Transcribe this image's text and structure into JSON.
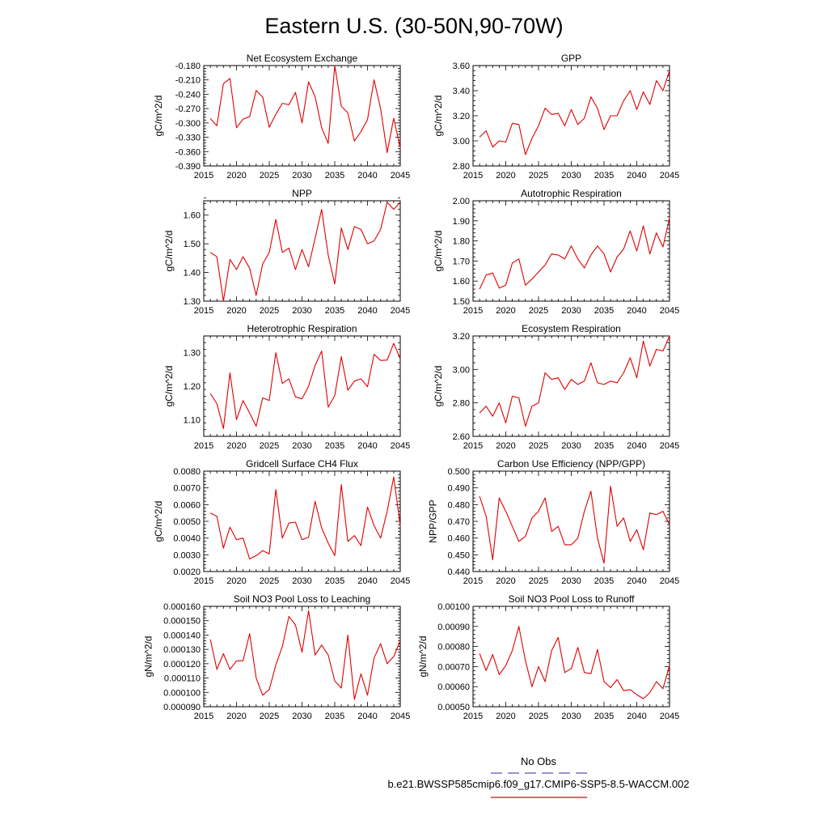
{
  "title": "Eastern U.S. (30-50N,90-70W)",
  "legend": {
    "obs_label": "No Obs",
    "model_label": "b.e21.BWSSP585cmip6.f09_g17.CMIP6-SSP5-8.5-WACCM.002",
    "obs_color": "#5555cc",
    "model_color": "#e00000"
  },
  "chart_data": [
    {
      "type": "line",
      "title": "Net Ecosystem Exchange",
      "xlabel": "",
      "ylabel": "gC/m^2/d",
      "xlim": [
        2015,
        2045
      ],
      "ylim": [
        -0.39,
        -0.18
      ],
      "xticks": [
        "2015",
        "2020",
        "2025",
        "2030",
        "2035",
        "2040",
        "2045"
      ],
      "yticks": [
        "-0.390",
        "-0.360",
        "-0.330",
        "-0.300",
        "-0.270",
        "-0.240",
        "-0.210",
        "-0.180"
      ],
      "series": [
        {
          "color": "#e00000",
          "x": [
            2016,
            2017,
            2018,
            2019,
            2020,
            2021,
            2022,
            2023,
            2024,
            2025,
            2026,
            2027,
            2028,
            2029,
            2030,
            2031,
            2032,
            2033,
            2034,
            2035,
            2036,
            2037,
            2038,
            2039,
            2040,
            2041,
            2042,
            2043,
            2044,
            2045
          ],
          "y": [
            -0.291,
            -0.306,
            -0.218,
            -0.207,
            -0.31,
            -0.292,
            -0.287,
            -0.232,
            -0.246,
            -0.309,
            -0.282,
            -0.259,
            -0.262,
            -0.236,
            -0.3,
            -0.214,
            -0.245,
            -0.31,
            -0.343,
            -0.18,
            -0.265,
            -0.279,
            -0.338,
            -0.318,
            -0.293,
            -0.21,
            -0.27,
            -0.362,
            -0.29,
            -0.352
          ]
        }
      ]
    },
    {
      "type": "line",
      "title": "GPP",
      "xlabel": "",
      "ylabel": "gC/m^2/d",
      "xlim": [
        2015,
        2045
      ],
      "ylim": [
        2.8,
        3.6
      ],
      "xticks": [
        "2015",
        "2020",
        "2025",
        "2030",
        "2035",
        "2040",
        "2045"
      ],
      "yticks": [
        "2.80",
        "3.00",
        "3.20",
        "3.40",
        "3.60"
      ],
      "series": [
        {
          "color": "#e00000",
          "x": [
            2016,
            2017,
            2018,
            2019,
            2020,
            2021,
            2022,
            2023,
            2024,
            2025,
            2026,
            2027,
            2028,
            2029,
            2030,
            2031,
            2032,
            2033,
            2034,
            2035,
            2036,
            2037,
            2038,
            2039,
            2040,
            2041,
            2042,
            2043,
            2044,
            2045
          ],
          "y": [
            3.03,
            3.08,
            2.95,
            3.0,
            2.99,
            3.14,
            3.13,
            2.89,
            3.02,
            3.12,
            3.26,
            3.21,
            3.22,
            3.12,
            3.25,
            3.13,
            3.18,
            3.35,
            3.26,
            3.09,
            3.2,
            3.2,
            3.32,
            3.4,
            3.25,
            3.39,
            3.29,
            3.48,
            3.4,
            3.56
          ]
        }
      ]
    },
    {
      "type": "line",
      "title": "NPP",
      "xlabel": "",
      "ylabel": "gC/m^2/d",
      "xlim": [
        2015,
        2045
      ],
      "ylim": [
        1.3,
        1.65
      ],
      "xticks": [
        "2015",
        "2020",
        "2025",
        "2030",
        "2035",
        "2040",
        "2045"
      ],
      "yticks": [
        "1.30",
        "1.40",
        "1.50",
        "1.60"
      ],
      "series": [
        {
          "color": "#e00000",
          "x": [
            2016,
            2017,
            2018,
            2019,
            2020,
            2021,
            2022,
            2023,
            2024,
            2025,
            2026,
            2027,
            2028,
            2029,
            2030,
            2031,
            2032,
            2033,
            2034,
            2035,
            2036,
            2037,
            2038,
            2039,
            2040,
            2041,
            2042,
            2043,
            2044,
            2045
          ],
          "y": [
            1.47,
            1.455,
            1.3,
            1.445,
            1.41,
            1.455,
            1.415,
            1.32,
            1.43,
            1.47,
            1.585,
            1.47,
            1.485,
            1.41,
            1.48,
            1.42,
            1.52,
            1.62,
            1.46,
            1.36,
            1.555,
            1.48,
            1.56,
            1.55,
            1.5,
            1.51,
            1.55,
            1.645,
            1.62,
            1.645
          ]
        }
      ]
    },
    {
      "type": "line",
      "title": "Autotrophic Respiration",
      "xlabel": "",
      "ylabel": "gC/m^2/d",
      "xlim": [
        2015,
        2045
      ],
      "ylim": [
        1.5,
        2.0
      ],
      "xticks": [
        "2015",
        "2020",
        "2025",
        "2030",
        "2035",
        "2040",
        "2045"
      ],
      "yticks": [
        "1.50",
        "1.60",
        "1.70",
        "1.80",
        "1.90",
        "2.00"
      ],
      "series": [
        {
          "color": "#e00000",
          "x": [
            2016,
            2017,
            2018,
            2019,
            2020,
            2021,
            2022,
            2023,
            2024,
            2025,
            2026,
            2027,
            2028,
            2029,
            2030,
            2031,
            2032,
            2033,
            2034,
            2035,
            2036,
            2037,
            2038,
            2039,
            2040,
            2041,
            2042,
            2043,
            2044,
            2045
          ],
          "y": [
            1.56,
            1.63,
            1.64,
            1.565,
            1.58,
            1.69,
            1.71,
            1.58,
            1.61,
            1.645,
            1.68,
            1.735,
            1.73,
            1.71,
            1.775,
            1.71,
            1.665,
            1.73,
            1.775,
            1.735,
            1.645,
            1.72,
            1.76,
            1.85,
            1.75,
            1.875,
            1.735,
            1.84,
            1.77,
            1.915
          ]
        }
      ]
    },
    {
      "type": "line",
      "title": "Heterotrophic Respiration",
      "xlabel": "",
      "ylabel": "gC/m^2/d",
      "xlim": [
        2015,
        2045
      ],
      "ylim": [
        1.05,
        1.35
      ],
      "xticks": [
        "2015",
        "2020",
        "2025",
        "2030",
        "2035",
        "2040",
        "2045"
      ],
      "yticks": [
        "1.10",
        "1.20",
        "1.30"
      ],
      "series": [
        {
          "color": "#e00000",
          "x": [
            2016,
            2017,
            2018,
            2019,
            2020,
            2021,
            2022,
            2023,
            2024,
            2025,
            2026,
            2027,
            2028,
            2029,
            2030,
            2031,
            2032,
            2033,
            2034,
            2035,
            2036,
            2037,
            2038,
            2039,
            2040,
            2041,
            2042,
            2043,
            2044,
            2045
          ],
          "y": [
            1.178,
            1.148,
            1.073,
            1.24,
            1.1,
            1.157,
            1.12,
            1.08,
            1.165,
            1.157,
            1.3,
            1.208,
            1.222,
            1.168,
            1.162,
            1.2,
            1.262,
            1.305,
            1.137,
            1.172,
            1.288,
            1.188,
            1.215,
            1.222,
            1.198,
            1.295,
            1.277,
            1.278,
            1.328,
            1.282
          ]
        }
      ]
    },
    {
      "type": "line",
      "title": "Ecosystem Respiration",
      "xlabel": "",
      "ylabel": "gC/m^2/d",
      "xlim": [
        2015,
        2045
      ],
      "ylim": [
        2.6,
        3.2
      ],
      "xticks": [
        "2015",
        "2020",
        "2025",
        "2030",
        "2035",
        "2040",
        "2045"
      ],
      "yticks": [
        "2.60",
        "2.80",
        "3.00",
        "3.20"
      ],
      "series": [
        {
          "color": "#e00000",
          "x": [
            2016,
            2017,
            2018,
            2019,
            2020,
            2021,
            2022,
            2023,
            2024,
            2025,
            2026,
            2027,
            2028,
            2029,
            2030,
            2031,
            2032,
            2033,
            2034,
            2035,
            2036,
            2037,
            2038,
            2039,
            2040,
            2041,
            2042,
            2043,
            2044,
            2045
          ],
          "y": [
            2.74,
            2.78,
            2.72,
            2.8,
            2.68,
            2.84,
            2.83,
            2.66,
            2.78,
            2.8,
            2.98,
            2.94,
            2.95,
            2.88,
            2.94,
            2.91,
            2.93,
            3.04,
            2.92,
            2.91,
            2.93,
            2.92,
            2.98,
            3.07,
            2.95,
            3.17,
            3.02,
            3.12,
            3.11,
            3.2
          ]
        }
      ]
    },
    {
      "type": "line",
      "title": "Gridcell Surface CH4 Flux",
      "xlabel": "",
      "ylabel": "gC/m^2/d",
      "xlim": [
        2015,
        2045
      ],
      "ylim": [
        0.002,
        0.008
      ],
      "xticks": [
        "2015",
        "2020",
        "2025",
        "2030",
        "2035",
        "2040",
        "2045"
      ],
      "yticks": [
        "0.0020",
        "0.0030",
        "0.0040",
        "0.0050",
        "0.0060",
        "0.0070",
        "0.0080"
      ],
      "series": [
        {
          "color": "#e00000",
          "x": [
            2016,
            2017,
            2018,
            2019,
            2020,
            2021,
            2022,
            2023,
            2024,
            2025,
            2026,
            2027,
            2028,
            2029,
            2030,
            2031,
            2032,
            2033,
            2034,
            2035,
            2036,
            2037,
            2038,
            2039,
            2040,
            2041,
            2042,
            2043,
            2044,
            2045
          ],
          "y": [
            0.0055,
            0.0053,
            0.0034,
            0.00465,
            0.0039,
            0.004,
            0.00275,
            0.00295,
            0.00325,
            0.00305,
            0.0069,
            0.004,
            0.0049,
            0.00495,
            0.0039,
            0.00405,
            0.0062,
            0.0046,
            0.0037,
            0.00295,
            0.0072,
            0.0038,
            0.00415,
            0.00355,
            0.00585,
            0.00475,
            0.004,
            0.0056,
            0.00765,
            0.00475
          ]
        }
      ]
    },
    {
      "type": "line",
      "title": "Carbon Use Efficiency (NPP/GPP)",
      "xlabel": "",
      "ylabel": "NPP/GPP",
      "xlim": [
        2015,
        2045
      ],
      "ylim": [
        0.44,
        0.5
      ],
      "xticks": [
        "2015",
        "2020",
        "2025",
        "2030",
        "2035",
        "2040",
        "2045"
      ],
      "yticks": [
        "0.440",
        "0.450",
        "0.460",
        "0.470",
        "0.480",
        "0.490",
        "0.500"
      ],
      "series": [
        {
          "color": "#e00000",
          "x": [
            2016,
            2017,
            2018,
            2019,
            2020,
            2021,
            2022,
            2023,
            2024,
            2025,
            2026,
            2027,
            2028,
            2029,
            2030,
            2031,
            2032,
            2033,
            2034,
            2035,
            2036,
            2037,
            2038,
            2039,
            2040,
            2041,
            2042,
            2043,
            2044,
            2045
          ],
          "y": [
            0.485,
            0.473,
            0.447,
            0.484,
            0.476,
            0.467,
            0.458,
            0.461,
            0.472,
            0.476,
            0.484,
            0.464,
            0.467,
            0.456,
            0.456,
            0.46,
            0.476,
            0.488,
            0.46,
            0.445,
            0.491,
            0.467,
            0.472,
            0.458,
            0.465,
            0.453,
            0.475,
            0.474,
            0.476,
            0.468
          ]
        }
      ]
    },
    {
      "type": "line",
      "title": "Soil NO3 Pool Loss to Leaching",
      "xlabel": "",
      "ylabel": "gN/m^2/d",
      "xlim": [
        2015,
        2045
      ],
      "ylim": [
        9e-05,
        0.00016
      ],
      "xticks": [
        "2015",
        "2020",
        "2025",
        "2030",
        "2035",
        "2040",
        "2045"
      ],
      "yticks": [
        "0.000090",
        "0.000100",
        "0.000110",
        "0.000120",
        "0.000130",
        "0.000140",
        "0.000150",
        "0.000160"
      ],
      "series": [
        {
          "color": "#e00000",
          "x": [
            2016,
            2017,
            2018,
            2019,
            2020,
            2021,
            2022,
            2023,
            2024,
            2025,
            2026,
            2027,
            2028,
            2029,
            2030,
            2031,
            2032,
            2033,
            2034,
            2035,
            2036,
            2037,
            2038,
            2039,
            2040,
            2041,
            2042,
            2043,
            2044,
            2045
          ],
          "y": [
            0.000137,
            0.000116,
            0.000127,
            0.000116,
            0.000122,
            0.000122,
            0.000141,
            0.00011,
            9.8e-05,
            0.000102,
            0.000119,
            0.000132,
            0.000153,
            0.000147,
            0.000128,
            0.000157,
            0.000126,
            0.000133,
            0.000126,
            0.000108,
            0.000103,
            0.00014,
            9.5e-05,
            0.000113,
            9.8e-05,
            0.000124,
            0.000134,
            0.00012,
            0.000125,
            0.000136
          ]
        }
      ]
    },
    {
      "type": "line",
      "title": "Soil NO3 Pool Loss to Runoff",
      "xlabel": "",
      "ylabel": "gN/m^2/d",
      "xlim": [
        2015,
        2045
      ],
      "ylim": [
        0.0005,
        0.001
      ],
      "xticks": [
        "2015",
        "2020",
        "2025",
        "2030",
        "2035",
        "2040",
        "2045"
      ],
      "yticks": [
        "0.00050",
        "0.00060",
        "0.00070",
        "0.00080",
        "0.00090",
        "0.00100"
      ],
      "series": [
        {
          "color": "#e00000",
          "x": [
            2016,
            2017,
            2018,
            2019,
            2020,
            2021,
            2022,
            2023,
            2024,
            2025,
            2026,
            2027,
            2028,
            2029,
            2030,
            2031,
            2032,
            2033,
            2034,
            2035,
            2036,
            2037,
            2038,
            2039,
            2040,
            2041,
            2042,
            2043,
            2044,
            2045
          ],
          "y": [
            0.000765,
            0.00068,
            0.00076,
            0.00066,
            0.000705,
            0.00078,
            0.0009,
            0.00073,
            0.0006,
            0.0007,
            0.000625,
            0.00078,
            0.000845,
            0.00067,
            0.00069,
            0.000795,
            0.00067,
            0.000665,
            0.000785,
            0.000625,
            0.000595,
            0.000635,
            0.00058,
            0.000585,
            0.00056,
            0.00054,
            0.00057,
            0.000625,
            0.00059,
            0.000705
          ]
        }
      ]
    }
  ]
}
